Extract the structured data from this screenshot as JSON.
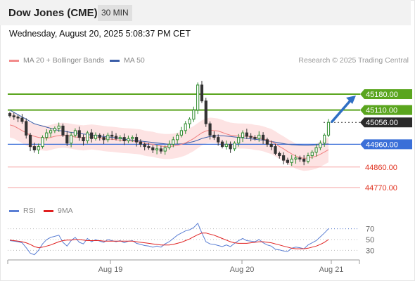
{
  "header": {
    "title": "Dow Jones (CME)",
    "timeframe": "30 MIN"
  },
  "datetime": "Wednesday, August 20, 2025 5:08:37 PM CET",
  "legend": {
    "items": [
      {
        "label": "MA 20 + Bollinger Bands",
        "color": "#f28b8b"
      },
      {
        "label": "MA 50",
        "color": "#3b5ea8"
      }
    ],
    "credit": "Research © 2025 Trading Central"
  },
  "rsi_legend": {
    "items": [
      {
        "label": "RSI",
        "color": "#5b7fd4"
      },
      {
        "label": "9MA",
        "color": "#e02020"
      }
    ]
  },
  "colors": {
    "up": "#2e8b2e",
    "down": "#333333",
    "band": "#fde3e3",
    "ma20": "#f08080",
    "ma50": "#3b5ea8",
    "green_line": "#5aa51e",
    "blue_line": "#3a6fd8",
    "red_line": "#f5a0a0",
    "arrow": "#2f6fc4",
    "red_text": "#e0301e"
  },
  "chart_data": [
    {
      "type": "candlestick",
      "x_labels": [
        "Aug 19",
        "Aug 20",
        "Aug 21"
      ],
      "ylim": [
        44730,
        45300
      ],
      "levels": [
        {
          "value": "45180.00",
          "price": 45180,
          "kind": "resistance",
          "style": "green-tag"
        },
        {
          "value": "45110.00",
          "price": 45110,
          "kind": "resistance",
          "style": "green-tag"
        },
        {
          "value": "45056.00",
          "price": 45056,
          "kind": "last",
          "style": "dark-tag"
        },
        {
          "value": "44960.00",
          "price": 44960,
          "kind": "pivot",
          "style": "blue-tag"
        },
        {
          "value": "44860.00",
          "price": 44860,
          "kind": "support",
          "style": "red-text"
        },
        {
          "value": "44770.00",
          "price": 44770,
          "kind": "support",
          "style": "red-text"
        }
      ],
      "target_arrow": {
        "from": 45056,
        "to": 45180
      },
      "closes": [
        45085,
        45080,
        45075,
        45060,
        45000,
        44950,
        44935,
        44950,
        44990,
        45010,
        45020,
        45030,
        45040,
        45000,
        44965,
        45000,
        45020,
        44990,
        44975,
        45010,
        44985,
        45000,
        44990,
        44980,
        45000,
        44995,
        44985,
        44990,
        44975,
        44985,
        44990,
        44970,
        44960,
        44950,
        44945,
        44935,
        44940,
        44930,
        44945,
        44960,
        44980,
        45000,
        45020,
        45050,
        45070,
        45110,
        45220,
        45150,
        45050,
        45000,
        44990,
        44970,
        44950,
        44960,
        44940,
        44965,
        44990,
        45010,
        44995,
        44990,
        44985,
        45000,
        44980,
        44960,
        44950,
        44920,
        44910,
        44890,
        44880,
        44895,
        44900,
        44895,
        44885,
        44910,
        44925,
        44945,
        44965,
        45000,
        45056
      ],
      "ma20": [
        45045,
        45040,
        45030,
        45020,
        45010,
        45000,
        44995,
        44990,
        44988,
        44986,
        44990,
        44995,
        44998,
        45000,
        44998,
        44995,
        44992,
        44990,
        44988,
        44990,
        44992,
        44990,
        44988,
        44985,
        44983,
        44982,
        44980,
        44978,
        44976,
        44975,
        44974,
        44972,
        44970,
        44965,
        44962,
        44960,
        44955,
        44952,
        44950,
        44950,
        44952,
        44955,
        44960,
        44966,
        44975,
        44985,
        44998,
        45010,
        45018,
        45022,
        45020,
        45018,
        45012,
        45005,
        45000,
        44998,
        44996,
        44996,
        44995,
        44994,
        44990,
        44988,
        44984,
        44978,
        44972,
        44962,
        44950,
        44940,
        44928,
        44918,
        44908,
        44902,
        44898,
        44900,
        44903,
        44908,
        44916,
        44926,
        44936
      ],
      "band_width": 55,
      "ma50": [
        45110,
        45100,
        45090,
        45080,
        45070,
        45060,
        45050,
        45045,
        45040,
        45035,
        45030,
        45025,
        45020,
        45018,
        45015,
        45012,
        45010,
        45008,
        45005,
        45003,
        45000,
        44998,
        44996,
        44994,
        44992,
        44990,
        44988,
        44985,
        44982,
        44980,
        44978,
        44976,
        44974,
        44972,
        44970,
        44968,
        44966,
        44964,
        44962,
        44960,
        44960,
        44961,
        44962,
        44964,
        44968,
        44972,
        44978,
        44985,
        44990,
        44994,
        44996,
        44997,
        44997,
        44996,
        44994,
        44992,
        44990,
        44988,
        44986,
        44984,
        44982,
        44980,
        44978,
        44975,
        44972,
        44969,
        44966,
        44963,
        44960,
        44958,
        44957,
        44956,
        44955,
        44955,
        44956,
        44957,
        44958,
        44960,
        44962
      ]
    },
    {
      "type": "line",
      "name": "RSI",
      "yticks": [
        70,
        50,
        30
      ],
      "ylim": [
        15,
        85
      ],
      "series": [
        {
          "name": "RSI",
          "values": [
            48,
            47,
            46,
            44,
            35,
            25,
            22,
            30,
            42,
            50,
            54,
            56,
            58,
            45,
            38,
            48,
            54,
            45,
            42,
            52,
            46,
            50,
            47,
            45,
            50,
            48,
            46,
            48,
            44,
            47,
            48,
            43,
            41,
            39,
            38,
            36,
            38,
            36,
            42,
            46,
            52,
            58,
            62,
            66,
            68,
            72,
            80,
            62,
            46,
            42,
            41,
            39,
            37,
            40,
            37,
            43,
            48,
            52,
            48,
            47,
            46,
            50,
            44,
            40,
            38,
            32,
            31,
            29,
            28,
            34,
            36,
            35,
            33,
            40,
            44,
            48,
            55,
            62,
            70
          ]
        },
        {
          "name": "9MA",
          "values": [
            49,
            48,
            47,
            46,
            44,
            41,
            37,
            35,
            36,
            38,
            40,
            43,
            46,
            48,
            49,
            49,
            50,
            50,
            49,
            48,
            48,
            48,
            48,
            47,
            47,
            47,
            47,
            47,
            47,
            47,
            47,
            46,
            45,
            44,
            43,
            42,
            41,
            40,
            40,
            40,
            41,
            43,
            45,
            48,
            51,
            55,
            59,
            62,
            62,
            60,
            58,
            55,
            52,
            49,
            46,
            44,
            43,
            43,
            43,
            44,
            45,
            46,
            46,
            45,
            44,
            42,
            40,
            38,
            36,
            34,
            33,
            33,
            33,
            34,
            36,
            38,
            41,
            45,
            50
          ]
        }
      ]
    }
  ]
}
